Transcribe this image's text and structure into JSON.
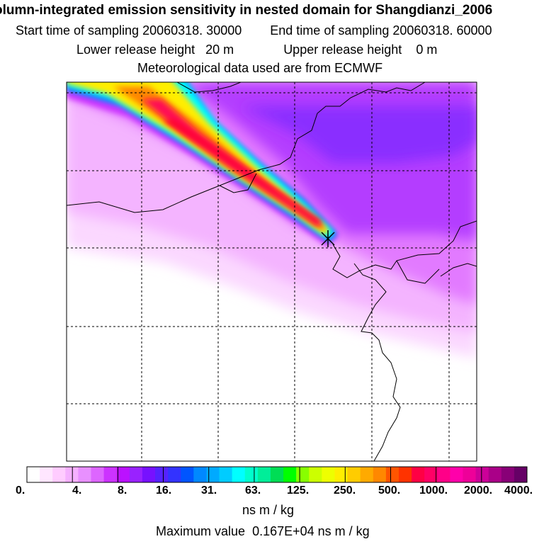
{
  "header": {
    "title": "olumn-integrated emission sensitivity in nested domain for Shangdianzi_2006",
    "start_label": "Start time of sampling",
    "start_value": "20060318. 30000",
    "end_label": "End time of sampling",
    "end_value": "20060318. 60000",
    "lower_label": "Lower release height",
    "lower_value": "20 m",
    "upper_label": "Upper release height",
    "upper_value": "0 m",
    "met_line": "Meteorological data used are from ECMWF"
  },
  "colorbar": {
    "tick_labels": [
      "0.",
      "4.",
      "8.",
      "16.",
      "31.",
      "63.",
      "125.",
      "250.",
      "500.",
      "1000.",
      "2000.",
      "4000."
    ],
    "colors": [
      "#ffffff",
      "#ffe6ff",
      "#ffccff",
      "#f5b0ff",
      "#e890ff",
      "#dd66ff",
      "#cc33ff",
      "#bb11ff",
      "#9922ff",
      "#7711ff",
      "#5522ff",
      "#3333ff",
      "#0055ff",
      "#0088ff",
      "#00aaff",
      "#00ccff",
      "#00ffff",
      "#00ffcc",
      "#00ee99",
      "#00dd55",
      "#00ff00",
      "#88ff00",
      "#ccff00",
      "#eeff00",
      "#ffee00",
      "#ffcc00",
      "#ffaa00",
      "#ff8800",
      "#ff5500",
      "#ff3300",
      "#ff0044",
      "#ff0066",
      "#ff0088",
      "#ff00aa",
      "#ee0099",
      "#cc0099",
      "#aa0088",
      "#880077",
      "#660066"
    ],
    "units": "ns m / kg",
    "max_label": "Maximum value",
    "max_value": "0.167E+04 ns m / kg"
  },
  "map": {
    "receptor_marker": "x-icon",
    "background_color": "#ffffff",
    "grid_color": "#000000"
  }
}
